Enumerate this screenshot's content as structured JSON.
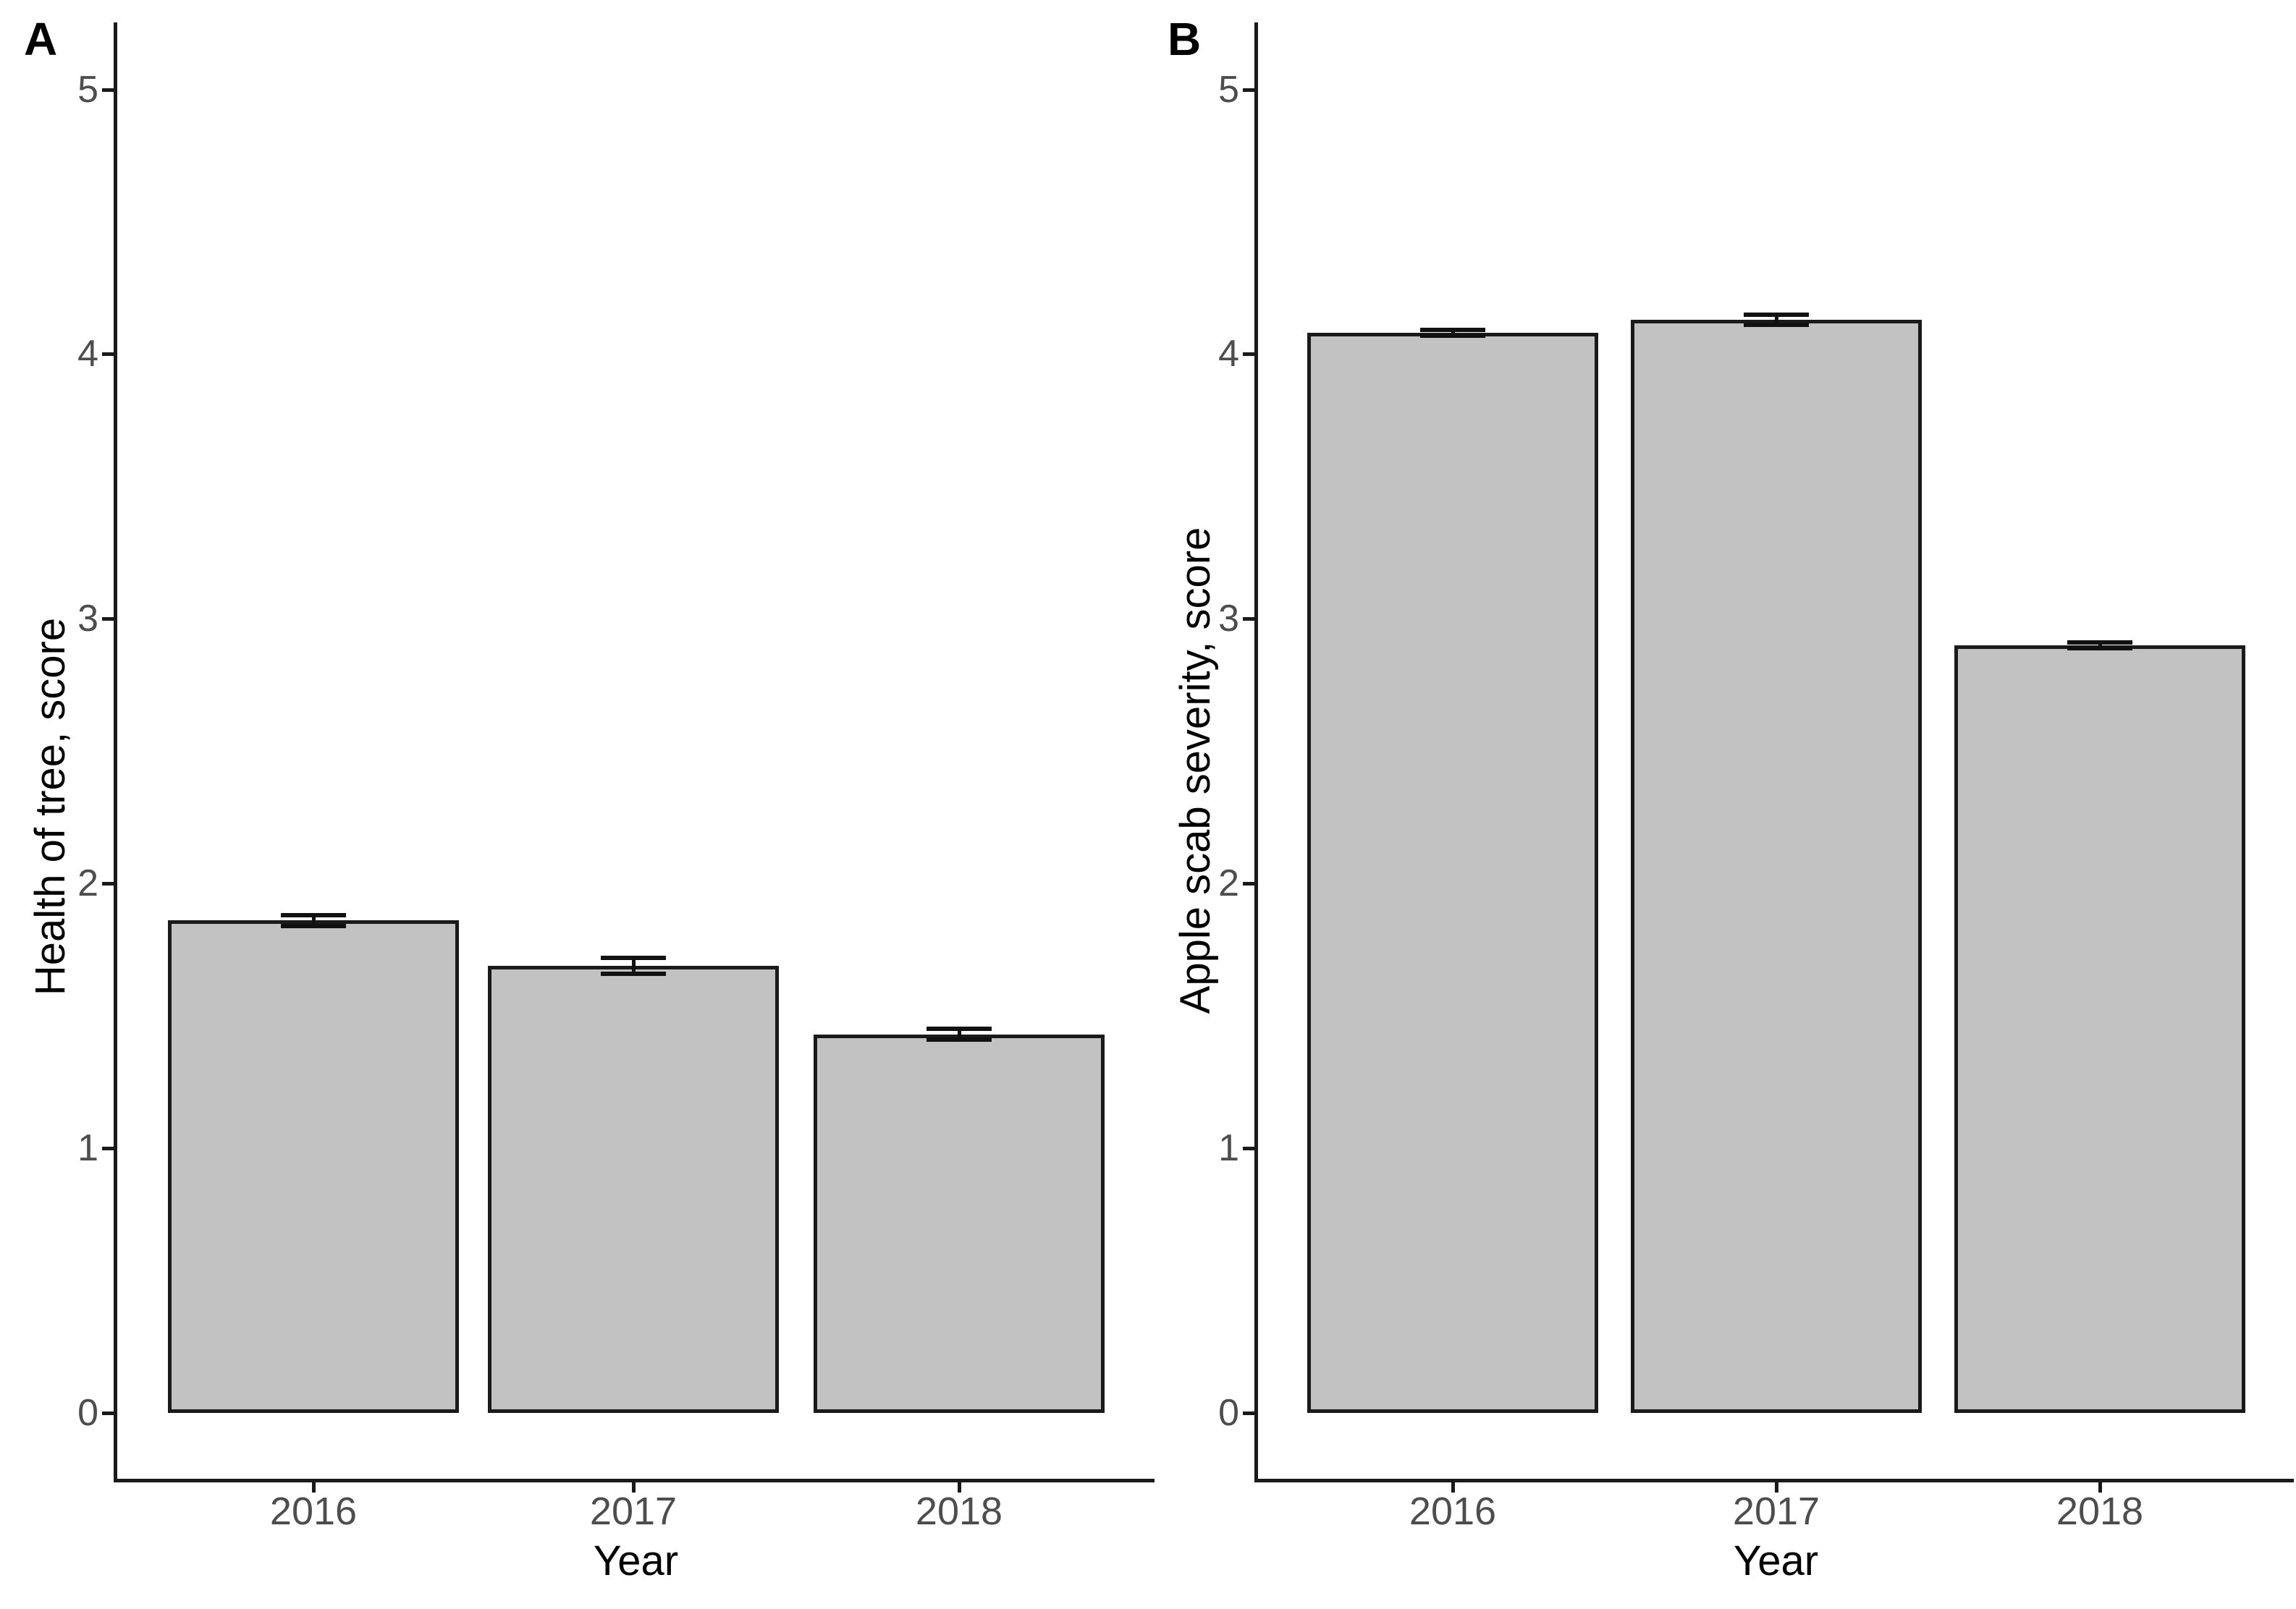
{
  "figure_background": "#ffffff",
  "colors": {
    "bar_fill": "#c2c2c2",
    "bar_border": "#1a1a1a",
    "axis_line": "#1a1a1a",
    "tick_label": "#4d4d4d",
    "axis_title": "#000000",
    "error_bar": "#111111"
  },
  "chart_data": [
    {
      "type": "bar",
      "panel_label": "A",
      "xlabel": "Year",
      "ylabel": "Health of tree, score",
      "categories": [
        "2016",
        "2017",
        "2018"
      ],
      "values": [
        1.86,
        1.69,
        1.43
      ],
      "error_bars_plus_minus": [
        0.02,
        0.03,
        0.02
      ],
      "ylim": [
        0,
        5
      ],
      "yticks": [
        0,
        1,
        2,
        3,
        4,
        5
      ],
      "grid": false,
      "legend": false,
      "bar_fill": "#c2c2c2",
      "bar_border": "#1a1a1a"
    },
    {
      "type": "bar",
      "panel_label": "B",
      "xlabel": "Year",
      "ylabel": "Apple scab severity, score",
      "categories": [
        "2016",
        "2017",
        "2018"
      ],
      "values": [
        4.08,
        4.13,
        2.9
      ],
      "error_bars_plus_minus": [
        0.01,
        0.02,
        0.01
      ],
      "ylim": [
        0,
        5
      ],
      "yticks": [
        0,
        1,
        2,
        3,
        4,
        5
      ],
      "grid": false,
      "legend": false,
      "bar_fill": "#c2c2c2",
      "bar_border": "#1a1a1a"
    }
  ]
}
